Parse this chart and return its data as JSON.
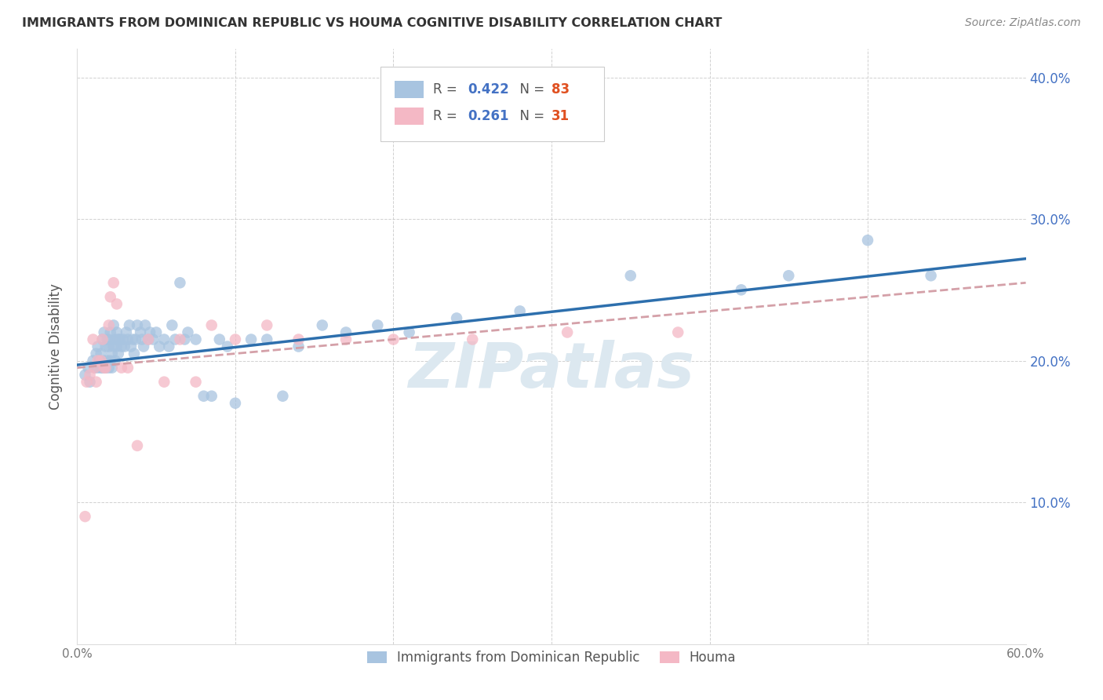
{
  "title": "IMMIGRANTS FROM DOMINICAN REPUBLIC VS HOUMA COGNITIVE DISABILITY CORRELATION CHART",
  "source": "Source: ZipAtlas.com",
  "ylabel": "Cognitive Disability",
  "x_min": 0.0,
  "x_max": 0.6,
  "y_min": 0.0,
  "y_max": 0.42,
  "x_ticks": [
    0.0,
    0.1,
    0.2,
    0.3,
    0.4,
    0.5,
    0.6
  ],
  "x_tick_labels": [
    "0.0%",
    "",
    "",
    "",
    "",
    "",
    "60.0%"
  ],
  "y_ticks": [
    0.0,
    0.1,
    0.2,
    0.3,
    0.4
  ],
  "y_tick_labels_right": [
    "",
    "10.0%",
    "20.0%",
    "30.0%",
    "40.0%"
  ],
  "blue_R": 0.422,
  "blue_N": 83,
  "pink_R": 0.261,
  "pink_N": 31,
  "blue_color": "#a8c4e0",
  "pink_color": "#f4b8c5",
  "blue_line_color": "#2d6fad",
  "pink_line_color": "#d4a0a8",
  "watermark_color": "#dce8f0",
  "blue_scatter_x": [
    0.005,
    0.007,
    0.008,
    0.01,
    0.011,
    0.012,
    0.013,
    0.013,
    0.014,
    0.015,
    0.015,
    0.016,
    0.016,
    0.017,
    0.017,
    0.018,
    0.018,
    0.019,
    0.019,
    0.02,
    0.02,
    0.02,
    0.021,
    0.021,
    0.022,
    0.022,
    0.023,
    0.023,
    0.024,
    0.024,
    0.025,
    0.025,
    0.026,
    0.026,
    0.027,
    0.028,
    0.029,
    0.03,
    0.031,
    0.032,
    0.033,
    0.034,
    0.035,
    0.036,
    0.037,
    0.038,
    0.04,
    0.041,
    0.042,
    0.043,
    0.045,
    0.046,
    0.048,
    0.05,
    0.052,
    0.055,
    0.058,
    0.06,
    0.062,
    0.065,
    0.068,
    0.07,
    0.075,
    0.08,
    0.085,
    0.09,
    0.095,
    0.1,
    0.11,
    0.12,
    0.13,
    0.14,
    0.155,
    0.17,
    0.19,
    0.21,
    0.24,
    0.28,
    0.35,
    0.42,
    0.45,
    0.5,
    0.54
  ],
  "blue_scatter_y": [
    0.19,
    0.195,
    0.185,
    0.2,
    0.195,
    0.205,
    0.195,
    0.21,
    0.2,
    0.195,
    0.205,
    0.195,
    0.215,
    0.2,
    0.22,
    0.195,
    0.21,
    0.2,
    0.215,
    0.195,
    0.21,
    0.215,
    0.2,
    0.22,
    0.205,
    0.195,
    0.225,
    0.21,
    0.215,
    0.2,
    0.22,
    0.21,
    0.215,
    0.205,
    0.215,
    0.21,
    0.215,
    0.21,
    0.22,
    0.215,
    0.225,
    0.21,
    0.215,
    0.205,
    0.215,
    0.225,
    0.22,
    0.215,
    0.21,
    0.225,
    0.215,
    0.22,
    0.215,
    0.22,
    0.21,
    0.215,
    0.21,
    0.225,
    0.215,
    0.255,
    0.215,
    0.22,
    0.215,
    0.175,
    0.175,
    0.215,
    0.21,
    0.17,
    0.215,
    0.215,
    0.175,
    0.21,
    0.225,
    0.22,
    0.225,
    0.22,
    0.23,
    0.235,
    0.26,
    0.25,
    0.26,
    0.285,
    0.26
  ],
  "pink_scatter_x": [
    0.005,
    0.006,
    0.008,
    0.01,
    0.011,
    0.012,
    0.013,
    0.015,
    0.016,
    0.017,
    0.018,
    0.02,
    0.021,
    0.023,
    0.025,
    0.028,
    0.032,
    0.038,
    0.045,
    0.055,
    0.065,
    0.075,
    0.085,
    0.1,
    0.12,
    0.14,
    0.17,
    0.2,
    0.25,
    0.31,
    0.38
  ],
  "pink_scatter_y": [
    0.09,
    0.185,
    0.19,
    0.215,
    0.195,
    0.185,
    0.2,
    0.2,
    0.215,
    0.195,
    0.195,
    0.225,
    0.245,
    0.255,
    0.24,
    0.195,
    0.195,
    0.14,
    0.215,
    0.185,
    0.215,
    0.185,
    0.225,
    0.215,
    0.225,
    0.215,
    0.215,
    0.215,
    0.215,
    0.22,
    0.22
  ],
  "blue_trend_x0": 0.0,
  "blue_trend_x1": 0.6,
  "blue_trend_y0": 0.197,
  "blue_trend_y1": 0.272,
  "pink_trend_x0": 0.0,
  "pink_trend_x1": 0.6,
  "pink_trend_y0": 0.195,
  "pink_trend_y1": 0.255
}
